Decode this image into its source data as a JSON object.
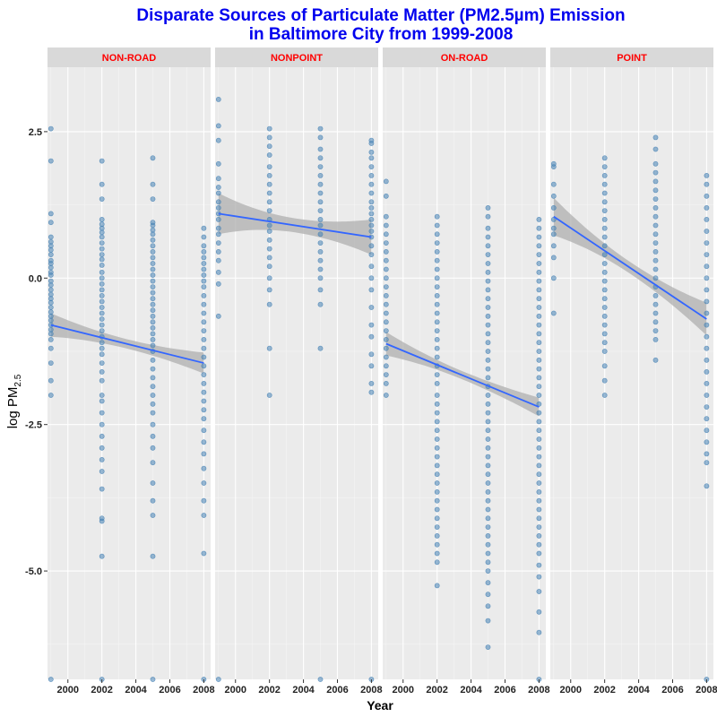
{
  "chart_data": {
    "type": "scatter",
    "title_lines": [
      "Disparate Sources of Particulate Matter (PM2.5µm) Emission",
      "in Baltimore City from 1999-2008"
    ],
    "xlabel": "Year",
    "ylabel_main": "log PM",
    "ylabel_sub": "2.5",
    "xlim": [
      1998.8,
      2008.4
    ],
    "ylim": [
      -6.85,
      3.6
    ],
    "x_ticks": [
      2000,
      2002,
      2004,
      2006,
      2008
    ],
    "x_tick_labels": [
      "2000",
      "2002",
      "2004",
      "2006",
      "2008"
    ],
    "y_ticks": [
      2.5,
      0,
      -2.5,
      -5
    ],
    "y_tick_labels": [
      "2.5",
      "0.0",
      "-2.5",
      "-5.0"
    ],
    "grid": true,
    "point_color": "#4682b4",
    "line_color": "#3366ff",
    "band_color": "#b3b3b3",
    "title_color": "#0000ee",
    "strip_text_color": "#ff0000",
    "panels": [
      {
        "name": "NON-ROAD",
        "trend": {
          "start": [
            1999,
            -0.8
          ],
          "end": [
            2008,
            -1.45
          ],
          "band_start": 0.2,
          "band_mid": 0.08,
          "band_end": 0.18
        },
        "points": [
          {
            "x": 1999,
            "values": [
              2.55,
              2.0,
              1.1,
              0.95,
              0.7,
              0.62,
              0.55,
              0.48,
              0.4,
              0.3,
              0.25,
              0.18,
              0.1,
              0.05,
              -0.05,
              -0.12,
              -0.2,
              -0.28,
              -0.35,
              -0.42,
              -0.5,
              -0.58,
              -0.65,
              -0.72,
              -0.8,
              -0.88,
              -0.95,
              -1.05,
              -1.2,
              -1.45,
              -1.75,
              -2.0,
              -6.85
            ]
          },
          {
            "x": 2002,
            "values": [
              2.0,
              1.6,
              1.35,
              1.0,
              0.92,
              0.85,
              0.78,
              0.7,
              0.6,
              0.5,
              0.4,
              0.32,
              0.22,
              0.1,
              0.0,
              -0.1,
              -0.2,
              -0.3,
              -0.4,
              -0.5,
              -0.6,
              -0.7,
              -0.8,
              -0.9,
              -1.0,
              -1.1,
              -1.2,
              -1.3,
              -1.45,
              -1.6,
              -1.75,
              -2.0,
              -2.1,
              -2.3,
              -2.5,
              -2.7,
              -2.9,
              -3.1,
              -3.3,
              -3.6,
              -4.1,
              -4.15,
              -4.75,
              -6.85
            ]
          },
          {
            "x": 2005,
            "values": [
              2.05,
              1.6,
              1.35,
              0.95,
              0.9,
              0.82,
              0.75,
              0.65,
              0.55,
              0.45,
              0.35,
              0.25,
              0.15,
              0.05,
              -0.05,
              -0.15,
              -0.25,
              -0.35,
              -0.45,
              -0.55,
              -0.65,
              -0.75,
              -0.85,
              -0.95,
              -1.05,
              -1.15,
              -1.25,
              -1.4,
              -1.55,
              -1.7,
              -1.85,
              -2.0,
              -2.15,
              -2.3,
              -2.5,
              -2.7,
              -2.9,
              -3.15,
              -3.5,
              -3.8,
              -4.05,
              -4.75,
              -6.85
            ]
          },
          {
            "x": 2008,
            "values": [
              0.85,
              0.7,
              0.55,
              0.45,
              0.35,
              0.25,
              0.15,
              0.05,
              -0.05,
              -0.15,
              -0.3,
              -0.45,
              -0.6,
              -0.75,
              -0.9,
              -1.05,
              -1.2,
              -1.35,
              -1.5,
              -1.65,
              -1.8,
              -1.95,
              -2.1,
              -2.25,
              -2.4,
              -2.6,
              -2.8,
              -3.0,
              -3.25,
              -3.5,
              -3.8,
              -4.05,
              -4.7,
              -6.85
            ]
          }
        ]
      },
      {
        "name": "NONPOINT",
        "trend": {
          "start": [
            1999,
            1.1
          ],
          "end": [
            2008,
            0.7
          ],
          "band_start": 0.35,
          "band_mid": 0.12,
          "band_end": 0.3
        },
        "points": [
          {
            "x": 1999,
            "values": [
              3.05,
              2.6,
              2.35,
              1.95,
              1.7,
              1.55,
              1.45,
              1.3,
              1.2,
              1.1,
              1.0,
              0.85,
              0.75,
              0.6,
              0.45,
              0.3,
              0.1,
              -0.1,
              -0.65,
              -6.85
            ]
          },
          {
            "x": 2002,
            "values": [
              2.55,
              2.4,
              2.25,
              2.1,
              1.9,
              1.75,
              1.6,
              1.45,
              1.3,
              1.15,
              1.0,
              0.9,
              0.8,
              0.65,
              0.5,
              0.35,
              0.2,
              0.0,
              -0.2,
              -0.45,
              -1.2,
              -2.0
            ]
          },
          {
            "x": 2005,
            "values": [
              2.55,
              2.4,
              2.2,
              2.05,
              1.9,
              1.75,
              1.6,
              1.45,
              1.3,
              1.15,
              1.0,
              0.9,
              0.75,
              0.6,
              0.45,
              0.3,
              0.15,
              0.0,
              -0.2,
              -0.45,
              -1.2,
              -6.85
            ]
          },
          {
            "x": 2008,
            "values": [
              2.35,
              2.3,
              2.15,
              2.05,
              1.9,
              1.75,
              1.6,
              1.45,
              1.3,
              1.2,
              1.1,
              1.0,
              0.9,
              0.8,
              0.7,
              0.55,
              0.4,
              0.2,
              0.0,
              -0.2,
              -0.5,
              -0.8,
              -1.0,
              -1.3,
              -1.5,
              -1.8,
              -1.95,
              -6.85
            ]
          }
        ]
      },
      {
        "name": "ON-ROAD",
        "trend": {
          "start": [
            1999,
            -1.12
          ],
          "end": [
            2008,
            -2.2
          ],
          "band_start": 0.2,
          "band_mid": 0.07,
          "band_end": 0.16
        },
        "points": [
          {
            "x": 1999,
            "values": [
              1.65,
              1.4,
              1.05,
              0.9,
              0.75,
              0.6,
              0.45,
              0.3,
              0.15,
              0.0,
              -0.15,
              -0.3,
              -0.45,
              -0.6,
              -0.75,
              -0.9,
              -1.05,
              -1.2,
              -1.35,
              -1.5,
              -1.65,
              -1.8,
              -2.0
            ]
          },
          {
            "x": 2002,
            "values": [
              1.05,
              0.9,
              0.75,
              0.6,
              0.45,
              0.3,
              0.15,
              0.0,
              -0.15,
              -0.3,
              -0.45,
              -0.6,
              -0.75,
              -0.9,
              -1.05,
              -1.2,
              -1.35,
              -1.5,
              -1.65,
              -1.8,
              -2.0,
              -2.15,
              -2.3,
              -2.45,
              -2.6,
              -2.75,
              -2.9,
              -3.05,
              -3.2,
              -3.35,
              -3.5,
              -3.65,
              -3.8,
              -3.95,
              -4.1,
              -4.25,
              -4.4,
              -4.55,
              -4.7,
              -4.85,
              -5.25
            ]
          },
          {
            "x": 2005,
            "values": [
              1.2,
              1.05,
              0.85,
              0.7,
              0.55,
              0.4,
              0.25,
              0.1,
              -0.05,
              -0.2,
              -0.35,
              -0.5,
              -0.65,
              -0.8,
              -0.95,
              -1.1,
              -1.25,
              -1.4,
              -1.55,
              -1.7,
              -1.85,
              -2.0,
              -2.15,
              -2.3,
              -2.45,
              -2.6,
              -2.75,
              -2.9,
              -3.05,
              -3.2,
              -3.35,
              -3.5,
              -3.65,
              -3.8,
              -3.95,
              -4.1,
              -4.25,
              -4.4,
              -4.55,
              -4.7,
              -4.85,
              -5.0,
              -5.2,
              -5.4,
              -5.6,
              -5.85,
              -6.3
            ]
          },
          {
            "x": 2008,
            "values": [
              1.0,
              0.85,
              0.7,
              0.55,
              0.4,
              0.25,
              0.1,
              -0.05,
              -0.2,
              -0.35,
              -0.5,
              -0.65,
              -0.8,
              -0.95,
              -1.1,
              -1.25,
              -1.4,
              -1.55,
              -1.7,
              -1.85,
              -2.0,
              -2.15,
              -2.3,
              -2.45,
              -2.6,
              -2.75,
              -2.9,
              -3.05,
              -3.2,
              -3.35,
              -3.5,
              -3.65,
              -3.8,
              -3.95,
              -4.1,
              -4.25,
              -4.4,
              -4.55,
              -4.7,
              -4.9,
              -5.1,
              -5.35,
              -5.7,
              -6.05,
              -6.85
            ]
          }
        ]
      },
      {
        "name": "POINT",
        "trend": {
          "start": [
            1999,
            1.05
          ],
          "end": [
            2008,
            -0.7
          ],
          "band_start": 0.32,
          "band_mid": 0.1,
          "band_end": 0.28
        },
        "points": [
          {
            "x": 1999,
            "values": [
              1.95,
              1.9,
              1.6,
              1.4,
              1.2,
              1.0,
              0.85,
              0.75,
              0.55,
              0.35,
              0.0,
              -0.6
            ]
          },
          {
            "x": 2002,
            "values": [
              2.05,
              1.9,
              1.75,
              1.6,
              1.45,
              1.3,
              1.15,
              1.0,
              0.85,
              0.7,
              0.55,
              0.4,
              0.25,
              0.1,
              -0.05,
              -0.2,
              -0.35,
              -0.5,
              -0.65,
              -0.8,
              -0.95,
              -1.1,
              -1.25,
              -1.5,
              -1.75,
              -2.0
            ]
          },
          {
            "x": 2005,
            "values": [
              2.4,
              2.2,
              1.95,
              1.8,
              1.65,
              1.5,
              1.35,
              1.2,
              1.05,
              0.9,
              0.75,
              0.6,
              0.45,
              0.3,
              0.15,
              0.0,
              -0.15,
              -0.3,
              -0.45,
              -0.6,
              -0.75,
              -0.9,
              -1.05,
              -1.4
            ]
          },
          {
            "x": 2008,
            "values": [
              1.75,
              1.6,
              1.4,
              1.2,
              1.0,
              0.8,
              0.6,
              0.4,
              0.2,
              0.0,
              -0.2,
              -0.4,
              -0.6,
              -0.8,
              -1.0,
              -1.2,
              -1.4,
              -1.6,
              -1.8,
              -2.0,
              -2.2,
              -2.4,
              -2.6,
              -2.8,
              -3.0,
              -3.15,
              -3.55,
              -6.85
            ]
          }
        ]
      }
    ]
  }
}
